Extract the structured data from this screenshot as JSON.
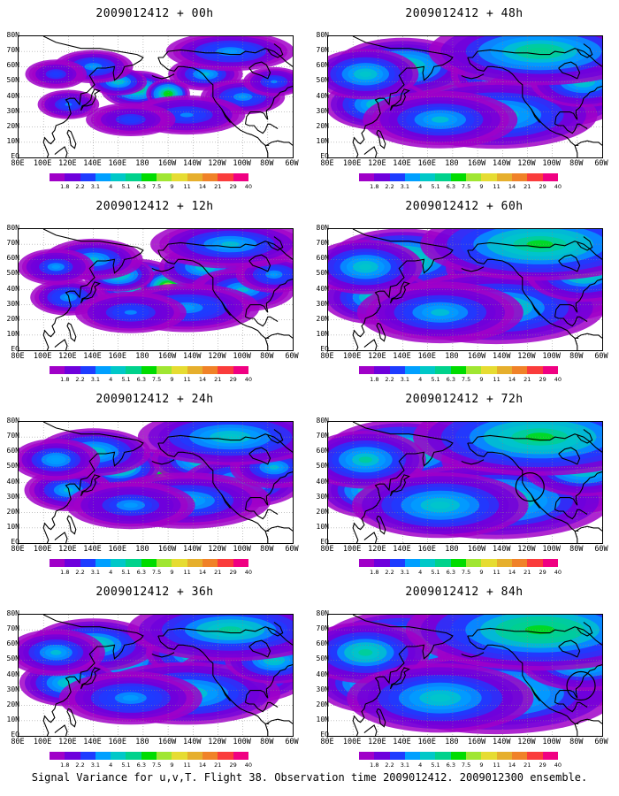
{
  "panels": [
    {
      "title": "2009012412 + 00h",
      "intensity": 0.25,
      "circle": null
    },
    {
      "title": "2009012412 + 48h",
      "intensity": 0.7,
      "circle": null
    },
    {
      "title": "2009012412 + 12h",
      "intensity": 0.4,
      "circle": null
    },
    {
      "title": "2009012412 + 60h",
      "intensity": 0.78,
      "circle": null
    },
    {
      "title": "2009012412 + 24h",
      "intensity": 0.52,
      "circle": null
    },
    {
      "title": "2009012412 + 72h",
      "intensity": 0.85,
      "circle": "west-coast"
    },
    {
      "title": "2009012412 + 36h",
      "intensity": 0.62,
      "circle": null
    },
    {
      "title": "2009012412 + 84h",
      "intensity": 0.92,
      "circle": "east-coast"
    }
  ],
  "lat_labels": [
    "80N",
    "70N",
    "60N",
    "50N",
    "40N",
    "30N",
    "20N",
    "10N",
    "EQ"
  ],
  "lon_labels": [
    "80E",
    "100E",
    "120E",
    "140E",
    "160E",
    "180",
    "160W",
    "140W",
    "120W",
    "100W",
    "80W",
    "60W"
  ],
  "colorbar": {
    "labels": [
      "1.8",
      "2.2",
      "3.1",
      "4",
      "5.1",
      "6.3",
      "7.5",
      "9",
      "11",
      "14",
      "21",
      "29",
      "40"
    ],
    "colors": [
      "#a000c8",
      "#6e00dc",
      "#1e3cff",
      "#00a0ff",
      "#00c8c8",
      "#00d28c",
      "#00dc00",
      "#a0e632",
      "#e6dc32",
      "#e6af2d",
      "#f08228",
      "#fa3c3c",
      "#f00082"
    ]
  },
  "caption": "Signal Variance for u,v,T. Flight 38. Observation time 2009012412. 2009012300 ensemble."
}
